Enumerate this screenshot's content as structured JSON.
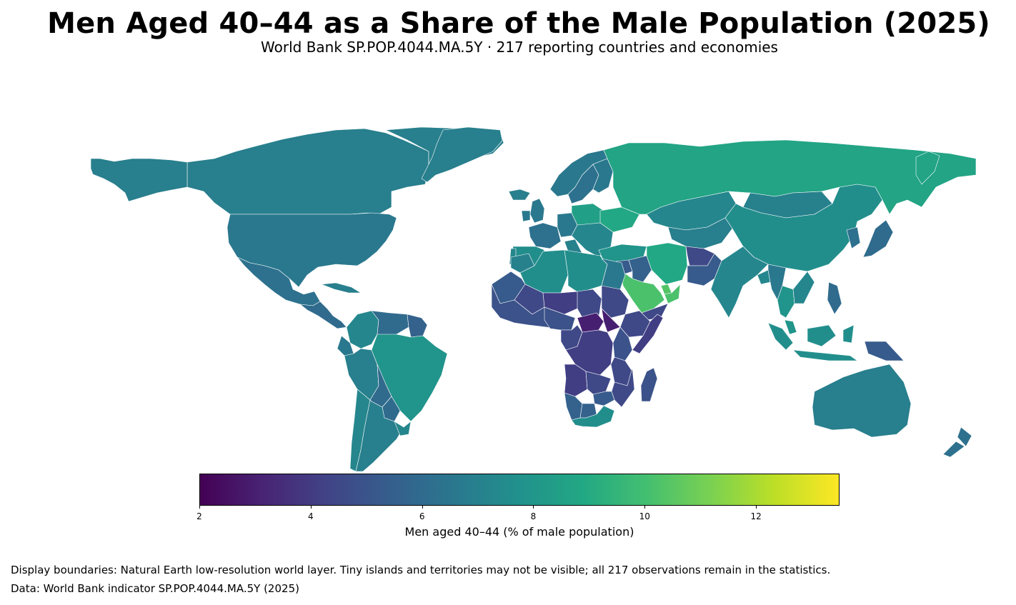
{
  "title": "Men Aged 40–44 as a Share of the Male Population (2025)",
  "subtitle": "World Bank SP.POP.4044.MA.5Y · 217 reporting countries and economies",
  "colorbar": {
    "label": "Men aged 40–44 (% of male population)",
    "min": 2,
    "max": 13.5,
    "ticks": [
      {
        "value": 2,
        "label": "2"
      },
      {
        "value": 4,
        "label": "4"
      },
      {
        "value": 6,
        "label": "6"
      },
      {
        "value": 8,
        "label": "8"
      },
      {
        "value": 10,
        "label": "10"
      },
      {
        "value": 12,
        "label": "12"
      }
    ],
    "colormap": [
      "#440154",
      "#482475",
      "#414487",
      "#355f8d",
      "#2a788e",
      "#21918c",
      "#22a884",
      "#44bf70",
      "#7ad151",
      "#bddf26",
      "#fde725"
    ]
  },
  "footnotes": {
    "boundaries": "Display boundaries: Natural Earth low-resolution world layer. Tiny islands and territories may not be visible; all 217 observations remain in the statistics.",
    "source": "Data: World Bank indicator SP.POP.4044.MA.5Y (2025)"
  },
  "chart_data": {
    "type": "choropleth",
    "indicator": "SP.POP.4044.MA.5Y",
    "year": 2025,
    "regions": [
      {
        "name": "Canada",
        "value": 6.9
      },
      {
        "name": "Greenland",
        "value": 6.9
      },
      {
        "name": "United States",
        "value": 6.6
      },
      {
        "name": "Mexico",
        "value": 6.3
      },
      {
        "name": "Central America",
        "value": 6.0
      },
      {
        "name": "Cuba",
        "value": 6.9
      },
      {
        "name": "Colombia",
        "value": 7.3
      },
      {
        "name": "Venezuela",
        "value": 6.0
      },
      {
        "name": "Guyana",
        "value": 5.6
      },
      {
        "name": "Ecuador",
        "value": 6.6
      },
      {
        "name": "Peru",
        "value": 6.9
      },
      {
        "name": "Brazil",
        "value": 7.9
      },
      {
        "name": "Bolivia",
        "value": 6.0
      },
      {
        "name": "Paraguay",
        "value": 6.0
      },
      {
        "name": "Chile",
        "value": 7.3
      },
      {
        "name": "Argentina",
        "value": 6.9
      },
      {
        "name": "Uruguay",
        "value": 7.3
      },
      {
        "name": "Iceland",
        "value": 6.9
      },
      {
        "name": "Norway",
        "value": 6.6
      },
      {
        "name": "Sweden",
        "value": 6.3
      },
      {
        "name": "Finland",
        "value": 6.6
      },
      {
        "name": "United Kingdom",
        "value": 6.6
      },
      {
        "name": "Ireland",
        "value": 6.6
      },
      {
        "name": "France",
        "value": 6.3
      },
      {
        "name": "Spain",
        "value": 7.6
      },
      {
        "name": "Portugal",
        "value": 7.3
      },
      {
        "name": "Italy",
        "value": 7.0
      },
      {
        "name": "Germany",
        "value": 6.6
      },
      {
        "name": "Poland",
        "value": 8.5
      },
      {
        "name": "Ukraine",
        "value": 8.9
      },
      {
        "name": "Balkans",
        "value": 7.3
      },
      {
        "name": "Turkey",
        "value": 7.9
      },
      {
        "name": "Russia",
        "value": 8.7
      },
      {
        "name": "Kazakhstan",
        "value": 7.3
      },
      {
        "name": "Central Asia",
        "value": 6.9
      },
      {
        "name": "Mongolia",
        "value": 7.0
      },
      {
        "name": "China",
        "value": 7.6
      },
      {
        "name": "Korea",
        "value": 6.3
      },
      {
        "name": "Japan",
        "value": 6.0
      },
      {
        "name": "Iran",
        "value": 8.9
      },
      {
        "name": "Iraq",
        "value": 5.6
      },
      {
        "name": "Syria",
        "value": 5.3
      },
      {
        "name": "Saudi Arabia",
        "value": 10.2
      },
      {
        "name": "Yemen",
        "value": 4.5
      },
      {
        "name": "Oman",
        "value": 10.2
      },
      {
        "name": "United Arab Emirates",
        "value": 10.4
      },
      {
        "name": "Afghanistan",
        "value": 4.5
      },
      {
        "name": "Pakistan",
        "value": 5.3
      },
      {
        "name": "India",
        "value": 7.3
      },
      {
        "name": "Bangladesh",
        "value": 7.3
      },
      {
        "name": "Myanmar",
        "value": 6.6
      },
      {
        "name": "Thailand",
        "value": 7.9
      },
      {
        "name": "Vietnam",
        "value": 7.3
      },
      {
        "name": "Malaysia",
        "value": 7.9
      },
      {
        "name": "Indonesia",
        "value": 7.6
      },
      {
        "name": "Philippines",
        "value": 6.0
      },
      {
        "name": "Papua New Guinea",
        "value": 5.3
      },
      {
        "name": "Australia",
        "value": 6.9
      },
      {
        "name": "New Zealand",
        "value": 6.3
      },
      {
        "name": "Morocco",
        "value": 7.0
      },
      {
        "name": "Algeria",
        "value": 7.6
      },
      {
        "name": "Libya",
        "value": 7.6
      },
      {
        "name": "Egypt",
        "value": 6.6
      },
      {
        "name": "Mauritania",
        "value": 5.3
      },
      {
        "name": "Mali",
        "value": 4.5
      },
      {
        "name": "Niger",
        "value": 4.1
      },
      {
        "name": "Chad",
        "value": 4.5
      },
      {
        "name": "Sudan",
        "value": 4.5
      },
      {
        "name": "Ethiopia",
        "value": 4.5
      },
      {
        "name": "Somalia",
        "value": 4.1
      },
      {
        "name": "West Africa",
        "value": 4.9
      },
      {
        "name": "Nigeria",
        "value": 4.9
      },
      {
        "name": "Central African Republic",
        "value": 3.0
      },
      {
        "name": "South Sudan",
        "value": 3.0
      },
      {
        "name": "Cameroon",
        "value": 4.5
      },
      {
        "name": "DR Congo",
        "value": 4.1
      },
      {
        "name": "Kenya",
        "value": 4.9
      },
      {
        "name": "Tanzania",
        "value": 4.5
      },
      {
        "name": "Angola",
        "value": 4.1
      },
      {
        "name": "Zambia",
        "value": 4.5
      },
      {
        "name": "Mozambique",
        "value": 4.5
      },
      {
        "name": "Madagascar",
        "value": 4.9
      },
      {
        "name": "Namibia",
        "value": 5.6
      },
      {
        "name": "Botswana",
        "value": 5.6
      },
      {
        "name": "Zimbabwe",
        "value": 5.3
      },
      {
        "name": "South Africa",
        "value": 7.6
      }
    ]
  }
}
